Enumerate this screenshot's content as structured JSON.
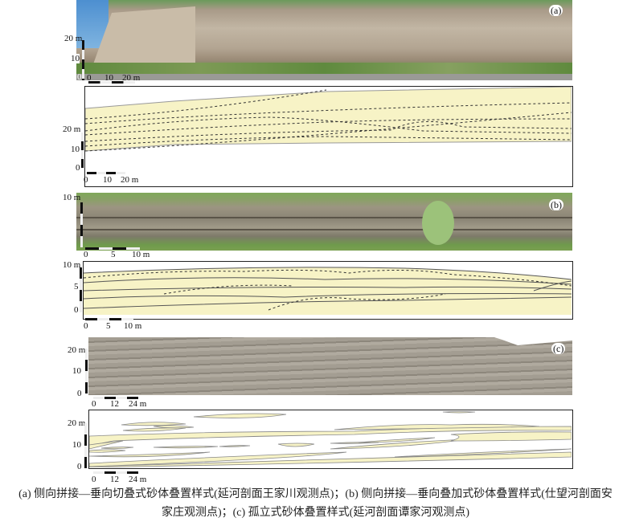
{
  "panels": [
    {
      "id": "a",
      "label": "(a)",
      "photo_axis": [
        "20 m",
        "10",
        "0"
      ],
      "photo_scale": [
        "0",
        "10",
        "20 m"
      ],
      "drawing_axis": [
        "20 m",
        "10",
        "0"
      ],
      "drawing_scale": [
        "0",
        "10",
        "20 m"
      ]
    },
    {
      "id": "b",
      "label": "(b)",
      "photo_axis": [
        "10 m"
      ],
      "photo_scale": [
        "0",
        "5",
        "10 m"
      ],
      "drawing_axis": [
        "10 m",
        "5",
        "0"
      ],
      "drawing_scale": [
        "0",
        "5",
        "10 m"
      ]
    },
    {
      "id": "c",
      "label": "(c)",
      "photo_axis": [
        "20 m",
        "10",
        "0"
      ],
      "photo_scale": [
        "0",
        "12",
        "24 m"
      ],
      "drawing_axis": [
        "20 m",
        "10",
        "0"
      ],
      "drawing_scale": [
        "0",
        "12",
        "24 m"
      ]
    }
  ],
  "colors": {
    "sand": "#f7f3c6",
    "outline": "#222222"
  },
  "caption": {
    "line1": "(a) 侧向拼接—垂向切叠式砂体叠置样式(延河剖面王家川观测点)；(b) 侧向拼接—垂向叠加式砂体叠置样式(仕望河剖面安",
    "line2": "家庄观测点)；(c) 孤立式砂体叠置样式(延河剖面谭家河观测点)"
  }
}
